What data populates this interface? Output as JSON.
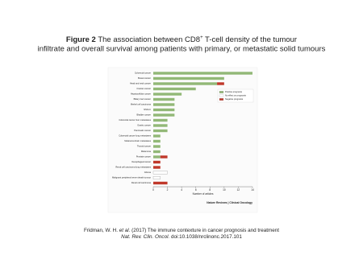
{
  "slide": {
    "title_label": "Figure 2",
    "title_main": "The association between CD8",
    "title_sup": "+",
    "title_rest": "T-cell density of the tumour",
    "title_line2": "infiltrate and overall survival among patients with primary, or metastatic solid tumours",
    "citation_a": "Fridman, W. H.",
    "citation_b": "et al.",
    "citation_c": "(2017) The immune contexture in cancer prognosis and treatment",
    "citation_journal": "Nat. Rev. Clin. Oncol.",
    "citation_doi": "doi:10.1038/nrclinonc.2017.101"
  },
  "chart_data": {
    "type": "stacked-hbar",
    "xlabel": "Number of articles",
    "footer": "Nature Reviews | Clinical Oncology",
    "categories": [
      "Colorectal cancer",
      "Breast cancer",
      "Head and neck cancer",
      "Ovarian cancer",
      "Hepatocellular cancer",
      "Biliary tract cancer",
      "Merkel cell carcinoma",
      "NSCLC",
      "Bladder cancer",
      "Colorectal cancer liver metastases",
      "Gastric cancer",
      "Pancreatic cancer",
      "Colorectal cancer lung metastases",
      "Melanoma brain metastases",
      "Thyroid cancer",
      "Melanoma",
      "Prostate cancer",
      "Oesophageal cancer",
      "Renal cell carcinoma lung metastases",
      "Glioma",
      "Malignant peripheral nerve sheath tumour",
      "Renal cell carcinoma"
    ],
    "series": [
      {
        "name": "Positive prognosis",
        "color": "#92b877",
        "values": [
          14,
          10,
          9,
          6,
          4,
          3,
          3,
          3,
          3,
          2,
          2,
          2,
          1,
          1,
          1,
          1,
          1,
          0,
          0,
          0,
          0,
          0
        ]
      },
      {
        "name": "No effect on prognosis",
        "color": "#ffffff",
        "values": [
          0,
          0,
          0,
          0,
          0,
          0,
          0,
          0,
          0,
          0,
          0,
          0,
          0,
          0,
          0,
          0,
          0,
          0,
          0,
          2,
          1,
          0
        ]
      },
      {
        "name": "Negative prognosis",
        "color": "#c0392b",
        "values": [
          0,
          0,
          1,
          0,
          0,
          0,
          0,
          0,
          0,
          0,
          0,
          0,
          0,
          0,
          0,
          0,
          1,
          1,
          1,
          0,
          0,
          2
        ]
      }
    ],
    "xlim": [
      0,
      14
    ],
    "xticks": [
      0,
      2,
      4,
      6,
      8,
      10,
      12,
      14
    ],
    "legend": "upper right"
  }
}
